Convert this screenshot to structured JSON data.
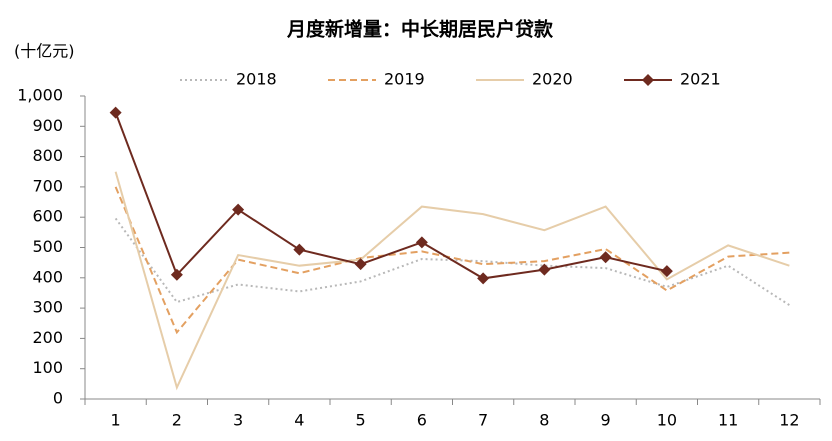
{
  "chart_data": {
    "type": "line",
    "title": "月度新增量：中长期居民户贷款",
    "y_label": "(十亿元)",
    "categories": [
      "1",
      "2",
      "3",
      "4",
      "5",
      "6",
      "7",
      "8",
      "9",
      "10",
      "11",
      "12"
    ],
    "series": [
      {
        "name": "2018",
        "color": "#b8b8b8",
        "style": "dotted",
        "values": [
          596,
          320,
          378,
          355,
          388,
          462,
          455,
          440,
          432,
          370,
          440,
          310
        ]
      },
      {
        "name": "2019",
        "color": "#e3a061",
        "style": "dashed",
        "values": [
          700,
          220,
          460,
          415,
          465,
          487,
          445,
          455,
          495,
          358,
          470,
          483
        ]
      },
      {
        "name": "2020",
        "color": "#e6cda9",
        "style": "solid",
        "values": [
          750,
          38,
          475,
          440,
          460,
          635,
          610,
          557,
          635,
          395,
          507,
          440
        ]
      },
      {
        "name": "2021",
        "color": "#6e2a1f",
        "style": "solid",
        "marker": "diamond",
        "values": [
          945,
          410,
          625,
          493,
          445,
          517,
          398,
          427,
          468,
          422,
          null,
          null
        ]
      }
    ],
    "ylim": [
      0,
      1000
    ],
    "yticks": [
      0,
      100,
      200,
      300,
      400,
      500,
      600,
      700,
      800,
      900,
      {
        "value": 1000,
        "label": "1,000"
      }
    ],
    "grid": false,
    "legend": "top"
  }
}
